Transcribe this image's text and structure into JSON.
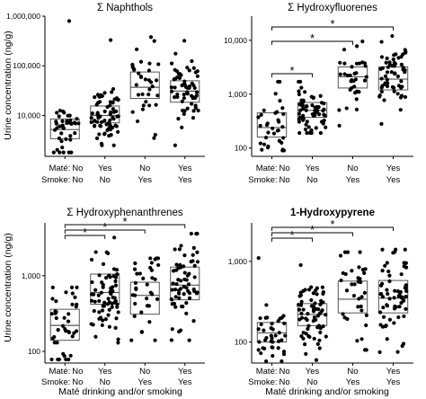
{
  "chart_data": [
    {
      "type": "scatter",
      "title": "Σ Naphthols",
      "title_bold": false,
      "yscale": "log",
      "ylim": [
        1500,
        1000000
      ],
      "yticks": [
        10000,
        100000,
        1000000
      ],
      "ytick_labels": [
        "10,000",
        "100,000",
        "1,000,000"
      ],
      "categories": [
        "No|No",
        "Yes|No",
        "No|Yes",
        "Yes|Yes"
      ],
      "boxes": [
        {
          "q1": 3400,
          "median": 5200,
          "q3": 8500
        },
        {
          "q1": 7100,
          "median": 10000,
          "q3": 15500
        },
        {
          "q1": 22000,
          "median": 37000,
          "q3": 75000
        },
        {
          "q1": 18500,
          "median": 31000,
          "q3": 50000
        }
      ],
      "n_points": [
        40,
        70,
        35,
        60
      ],
      "ranges": [
        [
          1800,
          800000
        ],
        [
          2500,
          330000
        ],
        [
          3500,
          380000
        ],
        [
          2500,
          320000
        ]
      ],
      "significance": []
    },
    {
      "type": "scatter",
      "title": "Σ Hydroxyfluorenes",
      "title_bold": false,
      "yscale": "log",
      "ylim": [
        70,
        28000
      ],
      "yticks": [
        100,
        1000,
        10000
      ],
      "ytick_labels": [
        "100",
        "1,000",
        "10,000"
      ],
      "categories": [
        "No|No",
        "Yes|No",
        "No|Yes",
        "Yes|Yes"
      ],
      "boxes": [
        {
          "q1": 160,
          "median": 240,
          "q3": 450
        },
        {
          "q1": 370,
          "median": 500,
          "q3": 700
        },
        {
          "q1": 1300,
          "median": 2100,
          "q3": 3200
        },
        {
          "q1": 1200,
          "median": 1900,
          "q3": 3200
        }
      ],
      "n_points": [
        35,
        65,
        35,
        60
      ],
      "ranges": [
        [
          90,
          1700
        ],
        [
          190,
          1700
        ],
        [
          260,
          9500
        ],
        [
          280,
          12000
        ]
      ],
      "significance": [
        {
          "from": 0,
          "to": 1,
          "label": "*"
        },
        {
          "from": 0,
          "to": 2,
          "label": "*"
        },
        {
          "from": 0,
          "to": 3,
          "label": "*"
        }
      ]
    },
    {
      "type": "scatter",
      "title": "Σ Hydroxyphenanthrenes",
      "title_bold": false,
      "yscale": "log",
      "ylim": [
        70,
        5000
      ],
      "yticks": [
        100,
        1000
      ],
      "ytick_labels": [
        "100",
        "1,000"
      ],
      "categories": [
        "No|No",
        "Yes|No",
        "No|Yes",
        "Yes|Yes"
      ],
      "boxes": [
        {
          "q1": 140,
          "median": 220,
          "q3": 360
        },
        {
          "q1": 420,
          "median": 600,
          "q3": 1050
        },
        {
          "q1": 310,
          "median": 550,
          "q3": 820
        },
        {
          "q1": 480,
          "median": 750,
          "q3": 1300
        }
      ],
      "n_points": [
        40,
        70,
        35,
        65
      ],
      "ranges": [
        [
          78,
          700
        ],
        [
          130,
          3200
        ],
        [
          140,
          1700
        ],
        [
          140,
          3600
        ]
      ],
      "significance": [
        {
          "from": 0,
          "to": 1,
          "label": "*"
        },
        {
          "from": 0,
          "to": 2,
          "label": "*"
        },
        {
          "from": 0,
          "to": 3,
          "label": "*"
        }
      ]
    },
    {
      "type": "scatter",
      "title": "1-Hydroxypyrene",
      "title_bold": true,
      "yscale": "log",
      "ylim": [
        55,
        3000
      ],
      "yticks": [
        100,
        1000
      ],
      "ytick_labels": [
        "100",
        "1,000"
      ],
      "categories": [
        "No|No",
        "Yes|No",
        "No|Yes",
        "Yes|Yes"
      ],
      "boxes": [
        {
          "q1": 100,
          "median": 130,
          "q3": 175
        },
        {
          "q1": 160,
          "median": 220,
          "q3": 300
        },
        {
          "q1": 230,
          "median": 340,
          "q3": 570
        },
        {
          "q1": 230,
          "median": 350,
          "q3": 580
        }
      ],
      "n_points": [
        40,
        70,
        35,
        65
      ],
      "ranges": [
        [
          58,
          1100
        ],
        [
          60,
          900
        ],
        [
          80,
          1300
        ],
        [
          75,
          1400
        ]
      ],
      "significance": [
        {
          "from": 0,
          "to": 1,
          "label": "*"
        },
        {
          "from": 0,
          "to": 2,
          "label": "*"
        },
        {
          "from": 0,
          "to": 3,
          "label": "*"
        }
      ]
    }
  ],
  "axes": {
    "ylabel": "Urine concentration (ng/g)",
    "xlabel": "Maté drinking and/or smoking",
    "row_labels": [
      "Maté:",
      "Smoke:"
    ],
    "category_values": [
      [
        "No",
        "Yes",
        "No",
        "Yes"
      ],
      [
        "No",
        "No",
        "Yes",
        "Yes"
      ]
    ]
  },
  "colors": {
    "points": "#000000",
    "box": "#555555",
    "axis": "#000000"
  }
}
